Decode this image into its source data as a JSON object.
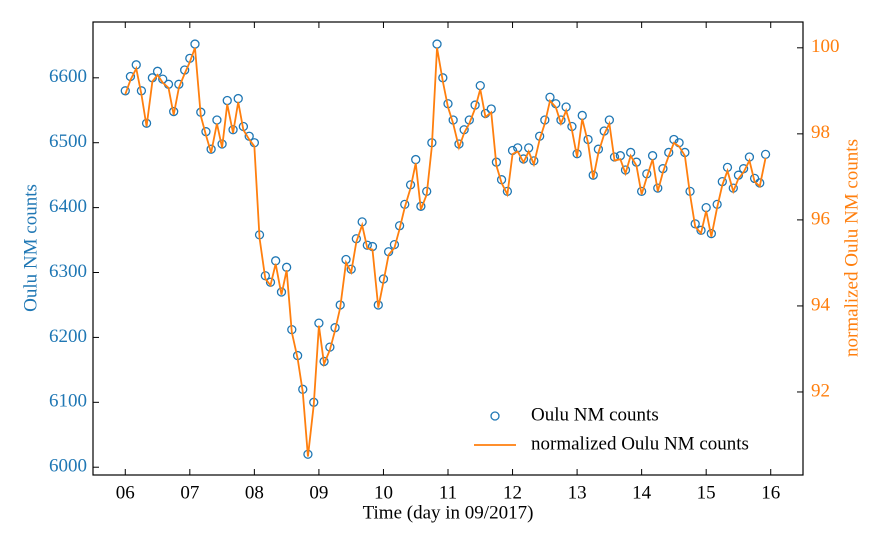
{
  "chart_data": {
    "type": "scatter",
    "xlabel": "Time (day in 09/2017)",
    "ylabel": "Oulu NM counts",
    "y2label": "normalized Oulu NM counts",
    "xlim": [
      5.5,
      16.5
    ],
    "ylim": [
      5988,
      6686
    ],
    "y2lim": [
      90.07,
      100.6
    ],
    "xticks": [
      {
        "value": 6,
        "label": "06"
      },
      {
        "value": 7,
        "label": "07"
      },
      {
        "value": 8,
        "label": "08"
      },
      {
        "value": 9,
        "label": "09"
      },
      {
        "value": 10,
        "label": "10"
      },
      {
        "value": 11,
        "label": "11"
      },
      {
        "value": 12,
        "label": "12"
      },
      {
        "value": 13,
        "label": "13"
      },
      {
        "value": 14,
        "label": "14"
      },
      {
        "value": 15,
        "label": "15"
      },
      {
        "value": 16,
        "label": "16"
      }
    ],
    "yticks": [
      6000,
      6100,
      6200,
      6300,
      6400,
      6500,
      6600
    ],
    "y2ticks": [
      92,
      94,
      96,
      98,
      100
    ],
    "legend": "lower right",
    "x": [
      6,
      6.08,
      6.17,
      6.25,
      6.33,
      6.42,
      6.5,
      6.58,
      6.67,
      6.75,
      6.83,
      6.92,
      7,
      7.08,
      7.17,
      7.25,
      7.33,
      7.42,
      7.5,
      7.58,
      7.67,
      7.75,
      7.83,
      7.92,
      8,
      8.08,
      8.17,
      8.25,
      8.33,
      8.42,
      8.5,
      8.58,
      8.67,
      8.75,
      8.83,
      8.92,
      9,
      9.08,
      9.17,
      9.25,
      9.33,
      9.42,
      9.5,
      9.58,
      9.67,
      9.75,
      9.83,
      9.92,
      10,
      10.08,
      10.17,
      10.25,
      10.33,
      10.42,
      10.5,
      10.58,
      10.67,
      10.75,
      10.83,
      10.92,
      11,
      11.08,
      11.17,
      11.25,
      11.33,
      11.42,
      11.5,
      11.58,
      11.67,
      11.75,
      11.83,
      11.92,
      12,
      12.08,
      12.17,
      12.25,
      12.33,
      12.42,
      12.5,
      12.58,
      12.67,
      12.75,
      12.83,
      12.92,
      13,
      13.08,
      13.17,
      13.25,
      13.33,
      13.42,
      13.5,
      13.58,
      13.67,
      13.75,
      13.83,
      13.92,
      14,
      14.08,
      14.17,
      14.25,
      14.33,
      14.42,
      14.5,
      14.58,
      14.67,
      14.75,
      14.83,
      14.92,
      15,
      15.08,
      15.17,
      15.25,
      15.33,
      15.42,
      15.5,
      15.58,
      15.67,
      15.75,
      15.83,
      15.92
    ],
    "series": [
      {
        "name": "Oulu NM counts",
        "type": "scatter",
        "color": "#1f77b4",
        "values": [
          6580,
          6602,
          6620,
          6580,
          6530,
          6600,
          6610,
          6598,
          6590,
          6548,
          6590,
          6612,
          6630,
          6652,
          6547,
          6517,
          6490,
          6535,
          6498,
          6565,
          6520,
          6568,
          6525,
          6510,
          6500,
          6358,
          6295,
          6285,
          6318,
          6270,
          6308,
          6212,
          6172,
          6120,
          6020,
          6100,
          6222,
          6163,
          6185,
          6215,
          6250,
          6320,
          6305,
          6352,
          6378,
          6342,
          6340,
          6250,
          6290,
          6332,
          6343,
          6372,
          6405,
          6435,
          6474,
          6402,
          6425,
          6500,
          6652,
          6600,
          6560,
          6535,
          6498,
          6520,
          6535,
          6558,
          6588,
          6545,
          6552,
          6470,
          6443,
          6425,
          6488,
          6492,
          6475,
          6492,
          6472,
          6510,
          6535,
          6570,
          6560,
          6535,
          6555,
          6525,
          6483,
          6542,
          6505,
          6450,
          6490,
          6518,
          6535,
          6478,
          6480,
          6458,
          6485,
          6470,
          6425,
          6452,
          6480,
          6430,
          6460,
          6485,
          6505,
          6500,
          6485,
          6425,
          6375,
          6365,
          6400,
          6360,
          6405,
          6440,
          6462,
          6430,
          6450,
          6460,
          6478,
          6445,
          6438,
          6482
        ]
      },
      {
        "name": "normalized Oulu NM counts",
        "type": "line",
        "axis": "y2",
        "color": "#ff7f0e",
        "values": [
          98.92,
          99.25,
          99.52,
          98.92,
          98.17,
          99.22,
          99.37,
          99.19,
          99.07,
          98.44,
          99.07,
          99.4,
          99.67,
          100,
          98.42,
          97.97,
          97.56,
          98.24,
          97.68,
          98.69,
          98.02,
          98.74,
          98.09,
          97.87,
          97.71,
          95.58,
          94.63,
          94.48,
          94.98,
          94.26,
          94.83,
          93.39,
          92.78,
          92.0,
          90.5,
          91.7,
          93.54,
          92.65,
          92.98,
          93.43,
          93.96,
          95.01,
          94.78,
          95.49,
          95.88,
          95.34,
          95.31,
          93.96,
          94.56,
          95.19,
          95.35,
          95.79,
          96.29,
          96.74,
          97.32,
          96.24,
          96.59,
          97.71,
          100,
          99.22,
          98.62,
          98.24,
          97.68,
          98.02,
          98.24,
          98.59,
          99.04,
          98.39,
          98.5,
          97.26,
          96.86,
          96.59,
          97.53,
          97.59,
          97.34,
          97.59,
          97.29,
          97.87,
          98.24,
          98.77,
          98.62,
          98.24,
          98.54,
          98.09,
          97.46,
          98.35,
          97.79,
          96.96,
          97.56,
          97.99,
          98.24,
          97.38,
          97.41,
          97.08,
          97.49,
          97.26,
          96.59,
          96.99,
          97.41,
          96.66,
          97.11,
          97.49,
          97.79,
          97.71,
          97.49,
          96.59,
          95.84,
          95.69,
          96.21,
          95.61,
          96.29,
          96.81,
          97.14,
          96.66,
          96.96,
          97.11,
          97.38,
          96.89,
          96.78,
          97.44
        ]
      }
    ]
  }
}
